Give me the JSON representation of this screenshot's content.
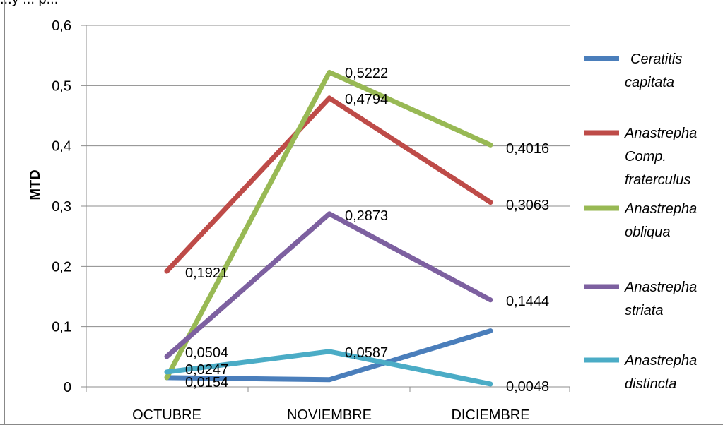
{
  "header_fragment": "...y ... p...",
  "chart_data": {
    "type": "line",
    "title": "",
    "xlabel": "",
    "ylabel": "MTD",
    "categories": [
      "OCTUBRE",
      "NOVIEMBRE",
      "DICIEMBRE"
    ],
    "ylim": [
      0,
      0.6
    ],
    "yticks": [
      "0",
      "0,1",
      "0,2",
      "0,3",
      "0,4",
      "0,5",
      "0,6"
    ],
    "grid": true,
    "legend_position": "right",
    "series": [
      {
        "name": "Ceratitis capitata",
        "legend_lines": [
          "Ceratitis",
          "capitata"
        ],
        "color": "#4a7ebb",
        "values": [
          0.0154,
          0.012,
          0.093
        ],
        "labels": [
          "0,0154",
          "",
          ""
        ]
      },
      {
        "name": "Anastrepha Comp. fraterculus",
        "legend_lines": [
          "Anastrepha",
          "Comp.",
          "fraterculus"
        ],
        "color": "#be4b48",
        "values": [
          0.1921,
          0.4794,
          0.3063
        ],
        "labels": [
          "0,1921",
          "0,4794",
          "0,3063"
        ]
      },
      {
        "name": "Anastrepha obliqua",
        "legend_lines": [
          "Anastrepha",
          "obliqua"
        ],
        "color": "#98b954",
        "values": [
          0.0154,
          0.5222,
          0.4016
        ],
        "labels": [
          "",
          "0,5222",
          "0,4016"
        ]
      },
      {
        "name": "Anastrepha striata",
        "legend_lines": [
          "Anastrepha",
          "striata"
        ],
        "color": "#7d60a0",
        "values": [
          0.0504,
          0.2873,
          0.1444
        ],
        "labels": [
          "0,0504",
          "0,2873",
          "0,1444"
        ]
      },
      {
        "name": "Anastrepha distincta",
        "legend_lines": [
          "Anastrepha",
          "distincta"
        ],
        "color": "#4bacc6",
        "values": [
          0.0247,
          0.0587,
          0.0048
        ],
        "labels": [
          "0,0247",
          "0,0587",
          "0,0048"
        ]
      }
    ]
  }
}
